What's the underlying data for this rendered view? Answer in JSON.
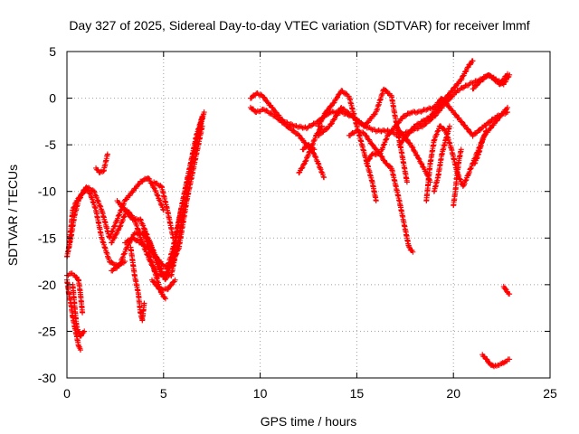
{
  "chart_data": {
    "type": "scatter",
    "title": "Day 327 of 2025, Sidereal Day-to-day VTEC variation (SDTVAR) for receiver lmmf",
    "xlabel": "GPS time / hours",
    "ylabel": "SDTVAR / TECUs",
    "xlim": [
      0,
      25
    ],
    "ylim": [
      -30,
      5
    ],
    "xticks": [
      0,
      5,
      10,
      15,
      20,
      25
    ],
    "yticks": [
      -30,
      -25,
      -20,
      -15,
      -10,
      -5,
      0,
      5
    ],
    "grid": true,
    "marker": "+",
    "series": [
      {
        "name": "SDTVAR",
        "color": "#ff0000",
        "tracks": [
          {
            "x": [
              0.0,
              0.2,
              0.4,
              0.6,
              0.9,
              1.2,
              1.5,
              1.8,
              2.2,
              2.6,
              3.0
            ],
            "y": [
              -17,
              -15,
              -12.5,
              -11,
              -9.8,
              -10.2,
              -12,
              -15,
              -17.5,
              -18,
              -17.5
            ]
          },
          {
            "x": [
              0.1,
              0.3,
              0.5,
              0.7,
              1.0,
              1.4,
              1.8,
              2.2,
              2.6,
              3.0,
              3.4,
              3.8,
              4.2,
              4.6,
              5.0
            ],
            "y": [
              -16,
              -12,
              -11,
              -10.5,
              -9.5,
              -10,
              -12,
              -15,
              -13,
              -11,
              -10,
              -9,
              -8.5,
              -10,
              -12
            ]
          },
          {
            "x": [
              0.0,
              0.1,
              0.2,
              0.3,
              0.4,
              0.5,
              0.6,
              0.7
            ],
            "y": [
              -19.5,
              -21,
              -22,
              -23.5,
              -24.5,
              -25.5,
              -26.5,
              -27
            ]
          },
          {
            "x": [
              0.0,
              0.2,
              0.4,
              0.6,
              0.7,
              0.8
            ],
            "y": [
              -19,
              -18.8,
              -19,
              -19.5,
              -21,
              -23
            ]
          },
          {
            "x": [
              0.3,
              0.5,
              0.7,
              0.9
            ],
            "y": [
              -20,
              -24.5,
              -25.5,
              -25
            ]
          },
          {
            "x": [
              1.5,
              1.7,
              1.9,
              2.1
            ],
            "y": [
              -7.5,
              -8,
              -7.8,
              -6
            ]
          },
          {
            "x": [
              2.3,
              2.7,
              3.1,
              3.5,
              3.9,
              4.3,
              4.7,
              5.1,
              5.5,
              5.9,
              6.3,
              6.7,
              7.1
            ],
            "y": [
              -15.5,
              -14,
              -12,
              -13,
              -15.5,
              -17.5,
              -19,
              -19,
              -16,
              -12,
              -8,
              -4.5,
              -1.5
            ]
          },
          {
            "x": [
              2.3,
              2.7,
              3.1,
              3.5,
              3.9,
              4.3,
              4.7,
              5.1,
              5.5,
              5.9,
              6.3,
              6.7,
              7.0
            ],
            "y": [
              -18.5,
              -18,
              -16,
              -14.5,
              -14.5,
              -15.5,
              -18,
              -19.5,
              -17,
              -12,
              -8,
              -4,
              -2
            ]
          },
          {
            "x": [
              2.6,
              3.0,
              3.4,
              3.8,
              4.2,
              4.6,
              5.0,
              5.4,
              5.8,
              6.2,
              6.6,
              7.0
            ],
            "y": [
              -11,
              -12,
              -13,
              -13,
              -15,
              -17,
              -18,
              -18,
              -16,
              -11,
              -7,
              -3
            ]
          },
          {
            "x": [
              3.3,
              3.5,
              3.7,
              3.8,
              3.9,
              4.0
            ],
            "y": [
              -16,
              -19,
              -21,
              -23,
              -23.8,
              -22
            ]
          },
          {
            "x": [
              4.0,
              4.3,
              4.6,
              4.9,
              5.1
            ],
            "y": [
              -14,
              -17,
              -19,
              -21,
              -21.5
            ]
          },
          {
            "x": [
              3.0,
              3.4,
              3.8,
              4.2,
              4.6,
              5.0,
              5.4,
              5.8,
              6.2,
              6.6,
              7.0
            ],
            "y": [
              -15.5,
              -15,
              -15.5,
              -16,
              -17,
              -19,
              -19,
              -15,
              -10,
              -6,
              -2
            ]
          },
          {
            "x": [
              4.5,
              4.9,
              5.2,
              5.5
            ],
            "y": [
              -9,
              -9.5,
              -12,
              -15
            ]
          },
          {
            "x": [
              4.4,
              4.8,
              5.2,
              5.6
            ],
            "y": [
              -19.5,
              -20.5,
              -20.5,
              -19.5
            ]
          },
          {
            "x": [
              9.5,
              9.8,
              10.1,
              10.6,
              11.2,
              11.8,
              12.4,
              13.0,
              13.6,
              14.2,
              14.8,
              15.4,
              16.0,
              16.6,
              17.2,
              17.8,
              18.4,
              19.0,
              19.6,
              20.2,
              20.8,
              21.4,
              21.8,
              22.2,
              22.6,
              22.9
            ],
            "y": [
              0,
              0.5,
              0.3,
              -1,
              -2.5,
              -3,
              -3.2,
              -2.5,
              -1.5,
              -1.5,
              -2,
              -3,
              -3.5,
              -3.5,
              -4,
              -3.5,
              -3,
              -2,
              -0.5,
              0.8,
              1.5,
              2,
              2.5,
              2,
              1.5,
              2.5
            ]
          },
          {
            "x": [
              9.5,
              9.8,
              10.2,
              10.8,
              11.4,
              12.0,
              12.4,
              12.8
            ],
            "y": [
              -1,
              -1.5,
              -1.2,
              -2,
              -3,
              -4,
              -5,
              -5.5
            ]
          },
          {
            "x": [
              12.0,
              12.3,
              12.6,
              12.9,
              13.2
            ],
            "y": [
              -8,
              -7,
              -5.5,
              -4,
              -3
            ]
          },
          {
            "x": [
              12.2,
              12.5,
              12.8,
              13.0,
              13.3
            ],
            "y": [
              -5.5,
              -5,
              -6,
              -7,
              -8.5
            ]
          },
          {
            "x": [
              13.0,
              13.4,
              13.8,
              14.2,
              14.6,
              15.0,
              15.4,
              15.8,
              16.0
            ],
            "y": [
              -3,
              -1.5,
              -0.5,
              0.8,
              0.2,
              -3,
              -6,
              -9,
              -11
            ]
          },
          {
            "x": [
              13.0,
              13.6,
              14.2,
              14.8,
              15.4,
              16.0,
              16.4,
              16.8,
              17.2,
              17.6
            ],
            "y": [
              -4,
              -3,
              -1,
              -2,
              -3,
              -1.5,
              1,
              0.2,
              -4.5,
              -9
            ]
          },
          {
            "x": [
              14.6,
              15.0,
              15.4,
              15.8,
              16.2,
              16.6,
              17.0,
              17.4,
              17.8,
              18.2,
              18.6,
              19.0,
              19.4,
              19.8,
              20.2,
              20.6,
              21.0,
              21.6,
              22.2,
              22.8
            ],
            "y": [
              -4,
              -3.5,
              -3.8,
              -5,
              -6,
              -4,
              -3,
              -2,
              -1.5,
              -1.5,
              -1.2,
              -1,
              0,
              -1,
              -2,
              -3,
              -4,
              -3,
              -2,
              -1.5
            ]
          },
          {
            "x": [
              15.5,
              15.8,
              16.2,
              16.5,
              16.8,
              17.2,
              17.5,
              17.7,
              17.9
            ],
            "y": [
              -7,
              -6,
              -6,
              -7,
              -7.5,
              -11,
              -14,
              -16,
              -16.5
            ]
          },
          {
            "x": [
              17.2,
              17.6,
              18.0,
              18.4,
              18.8,
              19.2,
              19.6,
              20.0,
              20.4,
              20.8,
              21.0
            ],
            "y": [
              -5,
              -4,
              -3,
              -2.5,
              -2,
              -1,
              0,
              1,
              2,
              3.5,
              4
            ]
          },
          {
            "x": [
              17.0,
              17.4,
              17.8,
              18.2,
              18.6,
              18.8
            ],
            "y": [
              -3,
              -4,
              -5,
              -6.5,
              -8,
              -9
            ]
          },
          {
            "x": [
              18.6,
              18.8,
              19.0,
              19.3,
              19.6,
              19.9,
              20.2,
              20.5,
              20.8,
              21.2,
              21.6,
              22.0,
              22.4,
              22.8
            ],
            "y": [
              -11,
              -7,
              -4.5,
              -3,
              -3.5,
              -5.5,
              -8,
              -9.5,
              -8,
              -6,
              -4,
              -3,
              -2,
              -1
            ]
          },
          {
            "x": [
              19.0,
              19.2,
              19.4,
              19.6,
              19.8
            ],
            "y": [
              -10,
              -8.5,
              -6,
              -4.5,
              -3
            ]
          },
          {
            "x": [
              20.0,
              20.1,
              20.2,
              20.3,
              20.4
            ],
            "y": [
              -11.5,
              -10,
              -8,
              -6.5,
              -5.5
            ]
          },
          {
            "x": [
              21.1,
              21.3,
              21.5,
              21.7
            ],
            "y": [
              -7,
              -6,
              -4.5,
              -3.5
            ]
          },
          {
            "x": [
              21.0,
              21.4,
              21.8,
              22.0,
              22.4,
              22.8
            ],
            "y": [
              1,
              1.8,
              2.5,
              2.2,
              1.5,
              2.6
            ]
          },
          {
            "x": [
              21.5,
              21.7,
              21.9,
              22.1,
              22.3,
              22.5,
              22.7,
              22.9
            ],
            "y": [
              -27.5,
              -28,
              -28.5,
              -28.8,
              -28.6,
              -28.5,
              -28.2,
              -28
            ]
          },
          {
            "x": [
              22.6,
              22.7,
              22.8,
              22.9
            ],
            "y": [
              -20.2,
              -20.5,
              -20.8,
              -21
            ]
          }
        ]
      }
    ]
  }
}
